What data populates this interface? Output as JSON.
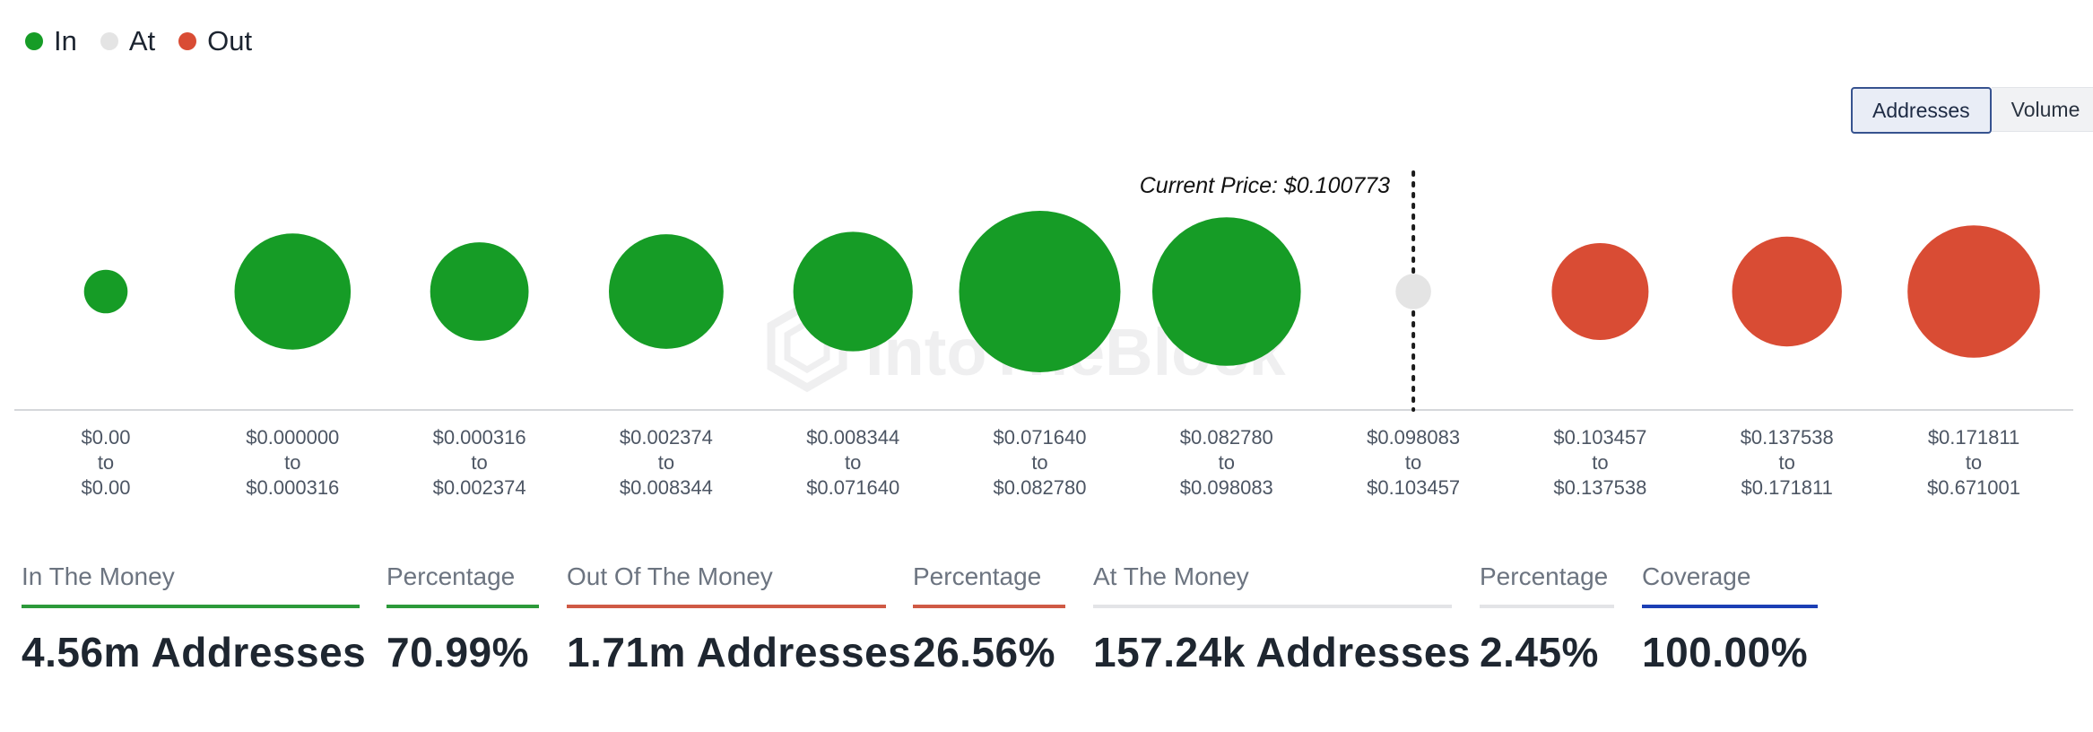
{
  "legend": {
    "items": [
      {
        "label": "In",
        "color": "#169c26"
      },
      {
        "label": "At",
        "color": "#e4e4e4"
      },
      {
        "label": "Out",
        "color": "#d94c34"
      }
    ]
  },
  "toggle": {
    "addresses_label": "Addresses",
    "volume_label": "Volume",
    "selected": "Addresses"
  },
  "chart_data": {
    "type": "scatter",
    "description_kind": "bubble",
    "current_price_label": "Current Price: $0.100773",
    "current_price_after_range_index": 6,
    "watermark": "IntoTheBlock",
    "colors": {
      "in": "#169c26",
      "at": "#e4e4e4",
      "out": "#d94c34"
    },
    "ranges": [
      {
        "from": "$0.00",
        "to": "$0.00",
        "status": "in",
        "relative_size": 0.27
      },
      {
        "from": "$0.000000",
        "to": "$0.000316",
        "status": "in",
        "relative_size": 0.72
      },
      {
        "from": "$0.000316",
        "to": "$0.002374",
        "status": "in",
        "relative_size": 0.61
      },
      {
        "from": "$0.002374",
        "to": "$0.008344",
        "status": "in",
        "relative_size": 0.71
      },
      {
        "from": "$0.008344",
        "to": "$0.071640",
        "status": "in",
        "relative_size": 0.74
      },
      {
        "from": "$0.071640",
        "to": "$0.082780",
        "status": "in",
        "relative_size": 1.0
      },
      {
        "from": "$0.082780",
        "to": "$0.098083",
        "status": "in",
        "relative_size": 0.92
      },
      {
        "from": "$0.098083",
        "to": "$0.103457",
        "status": "at",
        "relative_size": 0.22
      },
      {
        "from": "$0.103457",
        "to": "$0.137538",
        "status": "out",
        "relative_size": 0.6
      },
      {
        "from": "$0.137538",
        "to": "$0.171811",
        "status": "out",
        "relative_size": 0.68
      },
      {
        "from": "$0.171811",
        "to": "$0.671001",
        "status": "out",
        "relative_size": 0.82
      }
    ],
    "connector_word": "to"
  },
  "stats": [
    {
      "label": "In The Money",
      "value": "4.56m Addresses",
      "color": "#2c9a3a"
    },
    {
      "label": "Percentage",
      "value": "70.99%",
      "color": "#2c9a3a"
    },
    {
      "label": "Out Of The Money",
      "value": "1.71m Addresses",
      "color": "#cf5a45"
    },
    {
      "label": "Percentage",
      "value": "26.56%",
      "color": "#cf5a45"
    },
    {
      "label": "At The Money",
      "value": "157.24k Addresses",
      "color": "#e3e4e7"
    },
    {
      "label": "Percentage",
      "value": "2.45%",
      "color": "#e3e4e7"
    },
    {
      "label": "Coverage",
      "value": "100.00%",
      "color": "#1c3fb5"
    }
  ]
}
